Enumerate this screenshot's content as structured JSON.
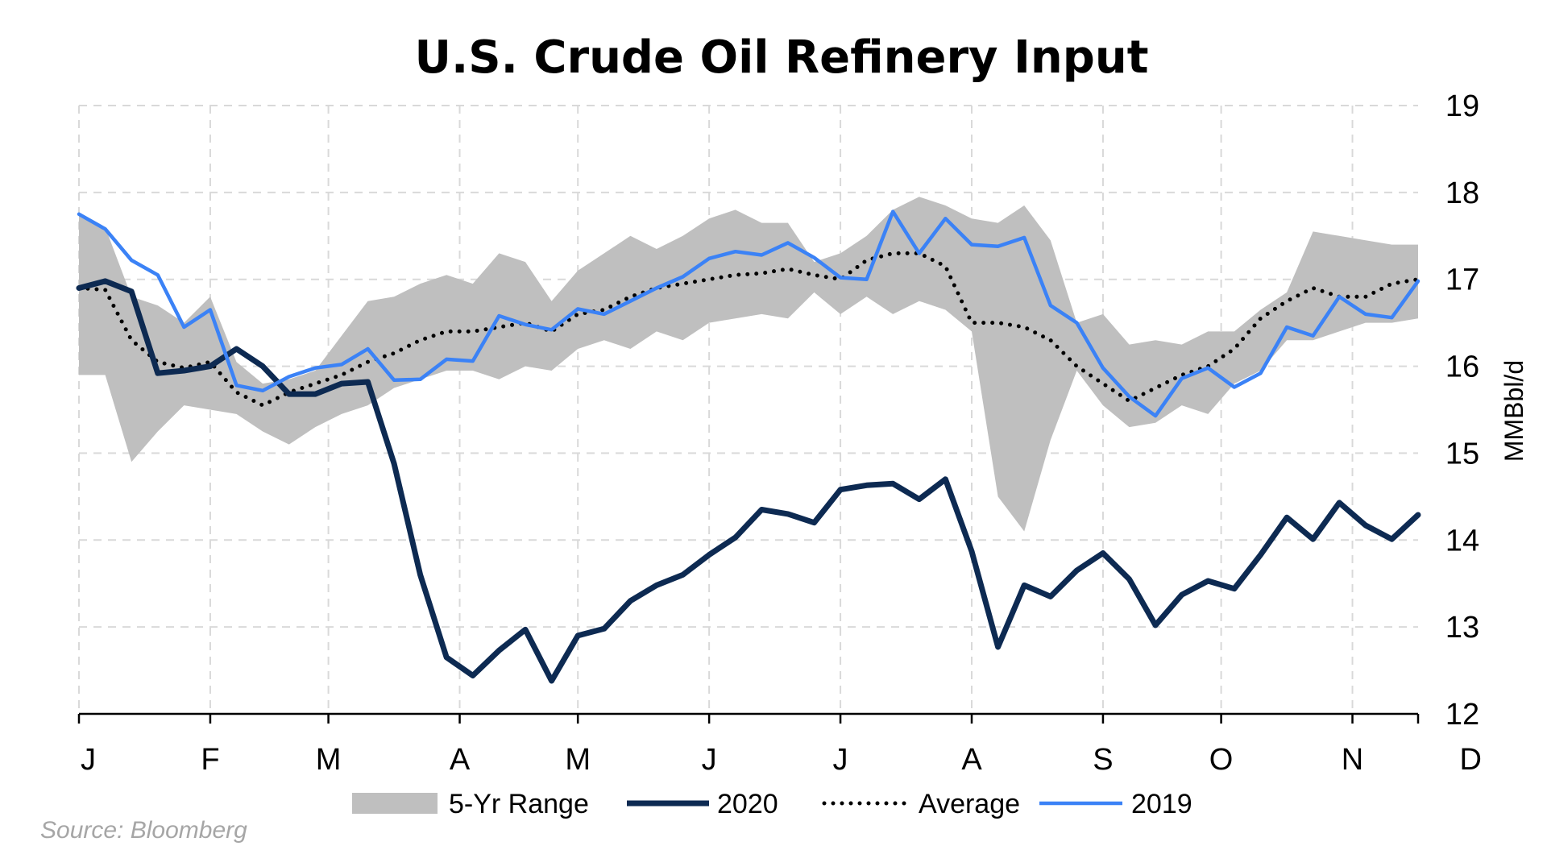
{
  "chart_data": {
    "type": "line",
    "title": "U.S. Crude Oil Refinery Input",
    "ylabel": "MMBbl/d",
    "ylim": [
      12,
      19
    ],
    "yticks": [
      "12",
      "13",
      "14",
      "15",
      "16",
      "17",
      "18",
      "19"
    ],
    "yaxis_position": "right",
    "x_week_count": 52,
    "month_labels": [
      "J",
      "F",
      "M",
      "A",
      "M",
      "J",
      "J",
      "A",
      "S",
      "O",
      "N",
      "D"
    ],
    "month_start_weeks": [
      0,
      5,
      9.5,
      14.5,
      19,
      24,
      29,
      34,
      39,
      43.5,
      48.5,
      53
    ],
    "grid": true,
    "legend_position": "bottom",
    "source": "Source: Bloomberg",
    "series": [
      {
        "name": "5-Yr Range",
        "kind": "band",
        "color": "#bfbfbf",
        "low": [
          15.9,
          15.9,
          14.9,
          15.25,
          15.55,
          15.5,
          15.45,
          15.25,
          15.1,
          15.3,
          15.45,
          15.55,
          15.75,
          15.85,
          15.95,
          15.95,
          15.85,
          16.0,
          15.95,
          16.2,
          16.3,
          16.2,
          16.4,
          16.3,
          16.5,
          16.55,
          16.6,
          16.55,
          16.85,
          16.6,
          16.8,
          16.6,
          16.75,
          16.65,
          16.4,
          14.5,
          14.1,
          15.15,
          15.95,
          15.55,
          15.3,
          15.35,
          15.55,
          15.45,
          15.8,
          15.95,
          16.3,
          16.3,
          16.4,
          16.5,
          16.5,
          16.55
        ],
        "high": [
          17.75,
          17.6,
          16.8,
          16.7,
          16.5,
          16.8,
          16.05,
          15.8,
          15.85,
          15.95,
          16.35,
          16.75,
          16.8,
          16.95,
          17.05,
          16.95,
          17.3,
          17.2,
          16.75,
          17.1,
          17.3,
          17.5,
          17.35,
          17.5,
          17.7,
          17.8,
          17.65,
          17.65,
          17.2,
          17.3,
          17.5,
          17.8,
          17.95,
          17.85,
          17.7,
          17.65,
          17.85,
          17.45,
          16.5,
          16.6,
          16.25,
          16.3,
          16.25,
          16.4,
          16.4,
          16.65,
          16.85,
          17.55,
          17.5,
          17.45,
          17.4,
          17.4
        ],
        "values": [
          15.9,
          15.9,
          14.9,
          15.25,
          15.55,
          15.5,
          15.45,
          15.25,
          15.1,
          15.3,
          15.45,
          15.55,
          15.75,
          15.85,
          15.95,
          15.95,
          15.85,
          16.0,
          15.95,
          16.2,
          16.3,
          16.2,
          16.4,
          16.3,
          16.5,
          16.55,
          16.6,
          16.55,
          16.85,
          16.6,
          16.8,
          16.6,
          16.75,
          16.65,
          16.4,
          14.5,
          14.1,
          15.15,
          15.95,
          15.55,
          15.3,
          15.35,
          15.55,
          15.45,
          15.8,
          15.95,
          16.3,
          16.3,
          16.4,
          16.5,
          16.5,
          16.55
        ]
      },
      {
        "name": "2020",
        "kind": "line",
        "color": "#0d2a52",
        "values": [
          16.9,
          16.98,
          16.86,
          15.92,
          15.95,
          16.0,
          16.2,
          16.0,
          15.68,
          15.68,
          15.8,
          15.82,
          14.88,
          13.6,
          12.65,
          12.44,
          12.73,
          12.97,
          12.38,
          12.9,
          12.98,
          13.3,
          13.48,
          13.6,
          13.83,
          14.03,
          14.35,
          14.3,
          14.2,
          14.58,
          14.63,
          14.65,
          14.47,
          14.7,
          13.87,
          12.77,
          13.48,
          13.35,
          13.65,
          13.85,
          13.55,
          13.02,
          13.37,
          13.53,
          13.44,
          13.83,
          14.26,
          14.01,
          14.43,
          14.17,
          14.01,
          14.29
        ]
      },
      {
        "name": "Average",
        "kind": "dotted",
        "color": "#000000",
        "values": [
          16.9,
          16.88,
          16.3,
          16.05,
          15.98,
          16.05,
          15.7,
          15.55,
          15.7,
          15.8,
          15.9,
          16.05,
          16.15,
          16.3,
          16.4,
          16.4,
          16.45,
          16.5,
          16.4,
          16.6,
          16.65,
          16.8,
          16.9,
          16.95,
          17.0,
          17.05,
          17.07,
          17.12,
          17.05,
          17.0,
          17.22,
          17.3,
          17.3,
          17.15,
          16.5,
          16.5,
          16.45,
          16.3,
          16.0,
          15.8,
          15.6,
          15.75,
          15.9,
          16.0,
          16.2,
          16.55,
          16.75,
          16.9,
          16.8,
          16.8,
          16.95,
          17.0
        ]
      },
      {
        "name": "2019",
        "kind": "line",
        "color": "#3b82f6",
        "values": [
          17.75,
          17.58,
          17.22,
          17.05,
          16.45,
          16.65,
          15.78,
          15.72,
          15.88,
          15.98,
          16.02,
          16.2,
          15.84,
          15.85,
          16.08,
          16.06,
          16.58,
          16.48,
          16.42,
          16.66,
          16.6,
          16.75,
          16.9,
          17.03,
          17.24,
          17.32,
          17.28,
          17.42,
          17.25,
          17.02,
          17.0,
          17.78,
          17.3,
          17.7,
          17.4,
          17.38,
          17.48,
          16.7,
          16.5,
          15.98,
          15.65,
          15.43,
          15.86,
          15.98,
          15.76,
          15.92,
          16.45,
          16.35,
          16.8,
          16.6,
          16.56,
          16.98
        ]
      }
    ]
  }
}
